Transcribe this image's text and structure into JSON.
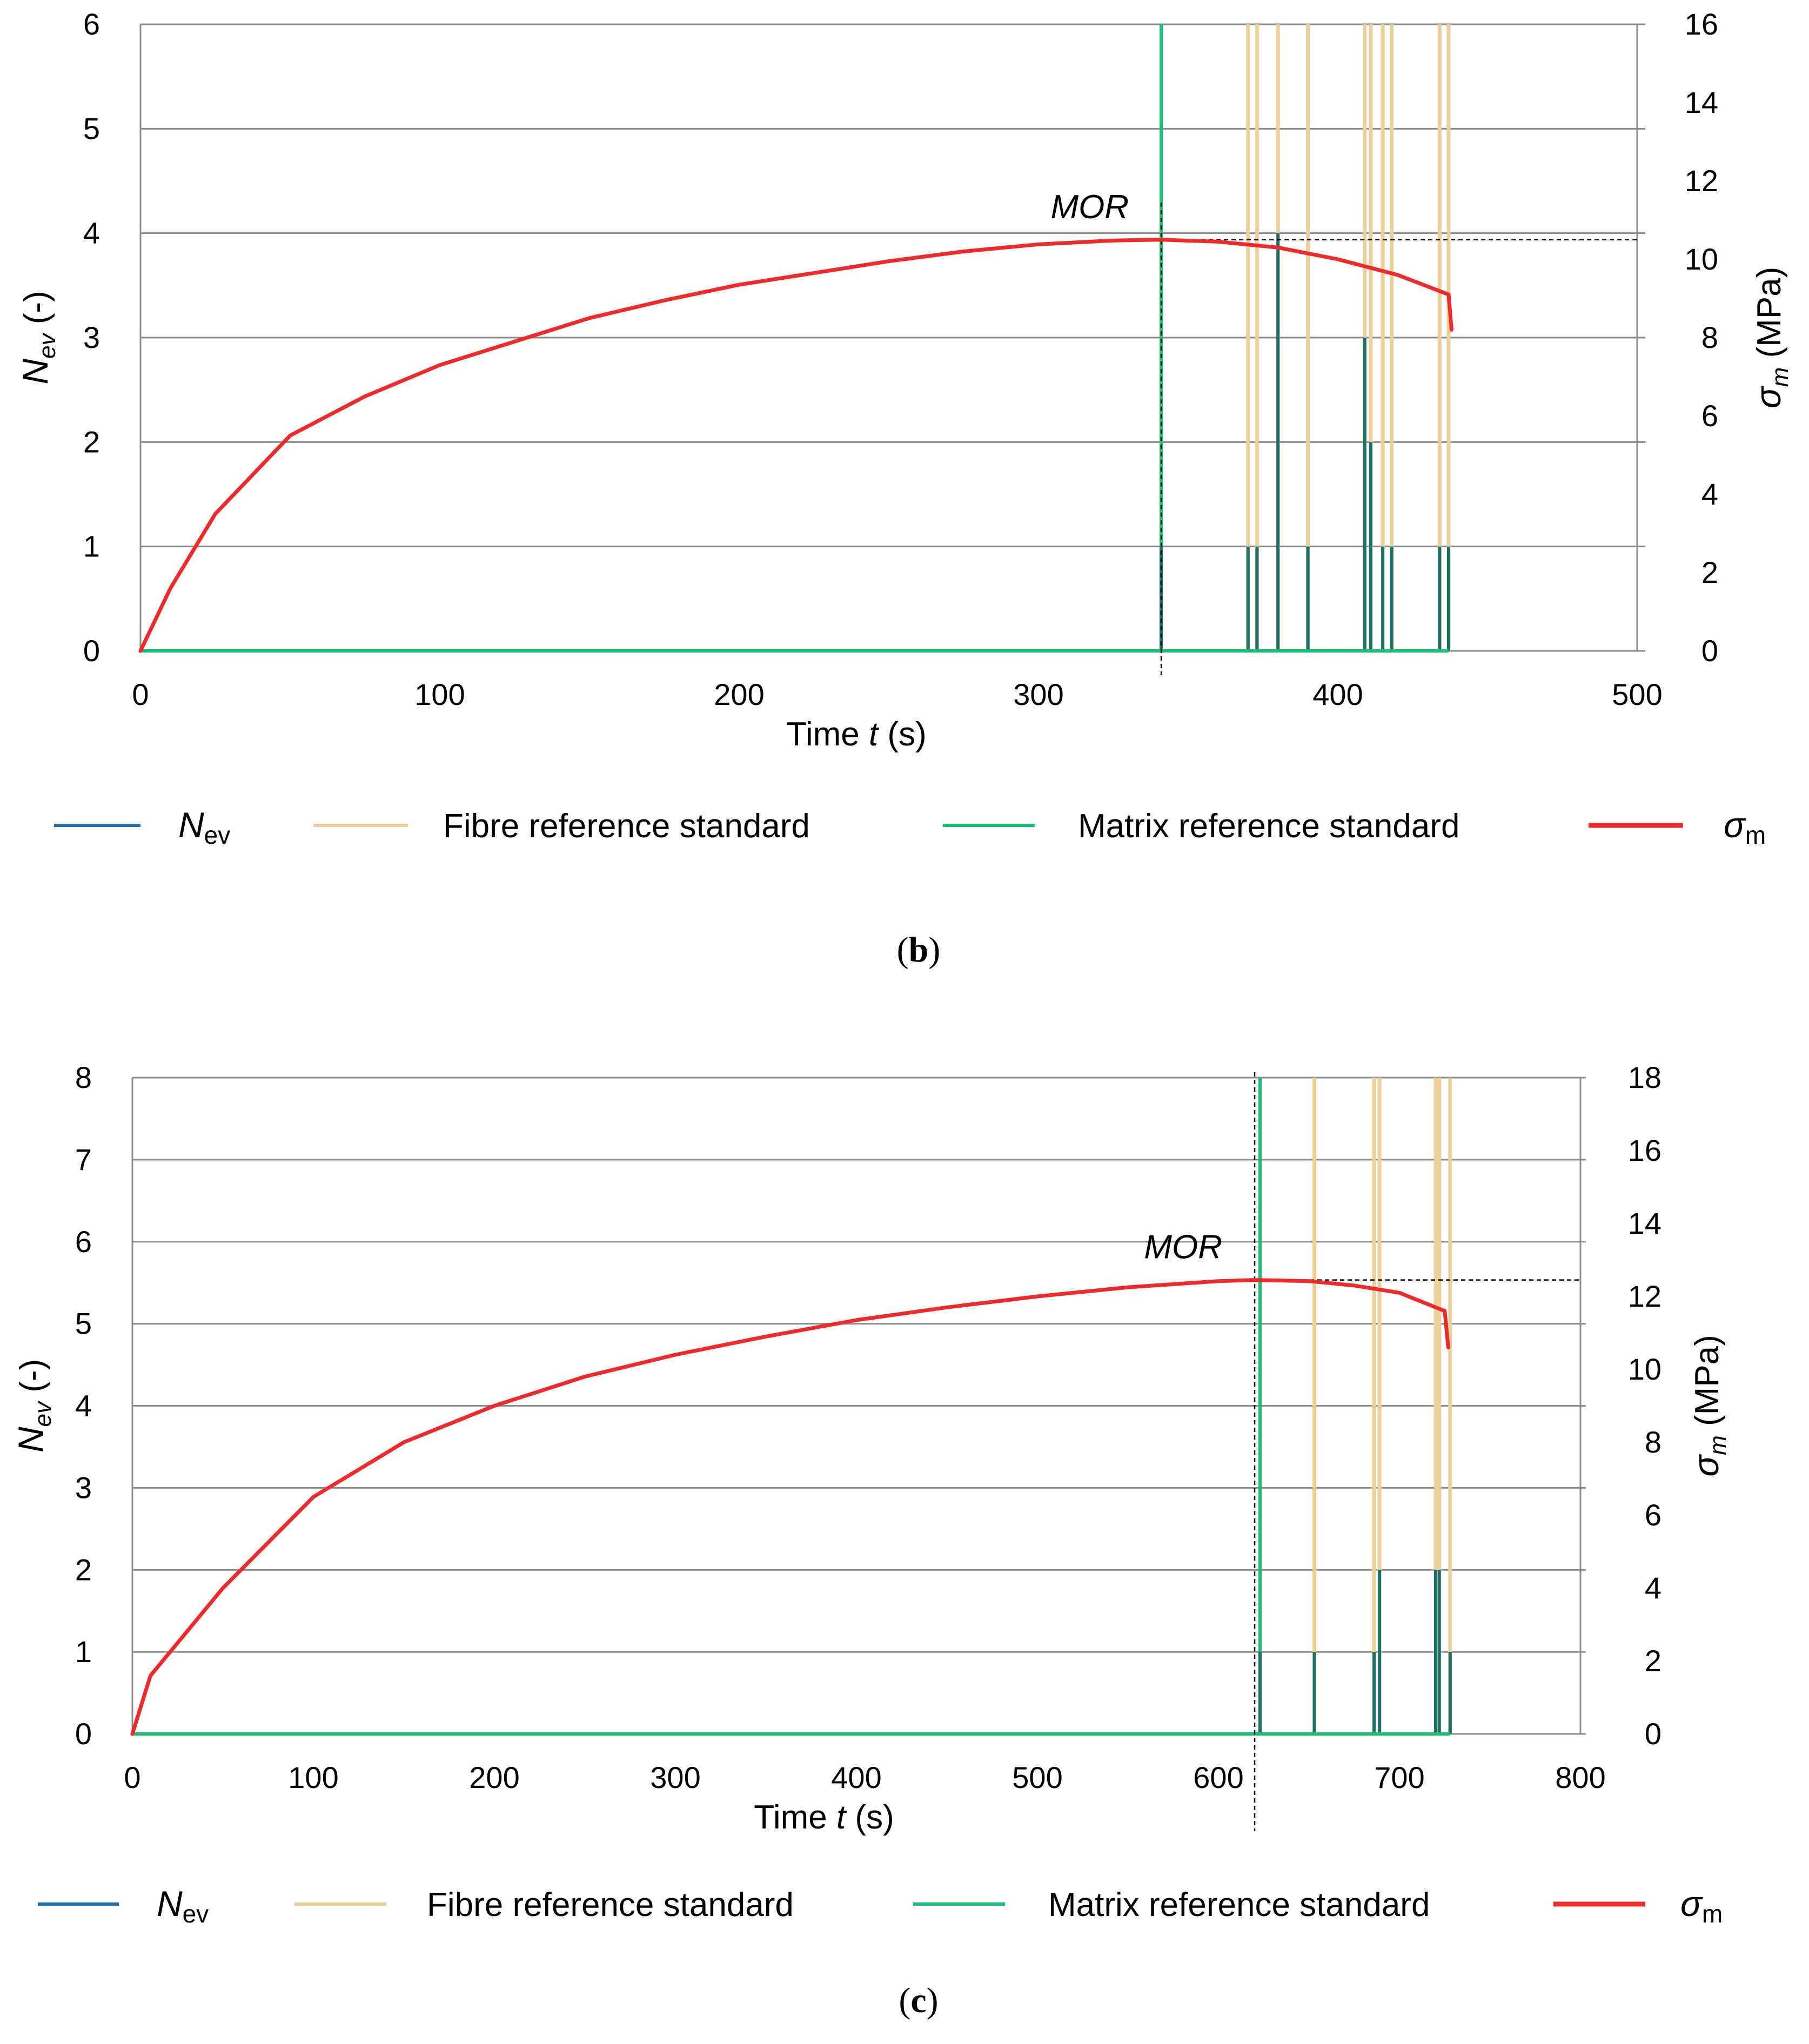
{
  "chart_data": [
    {
      "type": "line",
      "panel": "(b)",
      "panel_letter": "b",
      "xlabel": "Time t (s)",
      "xlabel_prefix": "Time ",
      "xlabel_var": "t",
      "xlabel_unit": " (s)",
      "ylabel_left": "Nev (-)",
      "ylabel_left_var": "N",
      "ylabel_left_sub": "ev",
      "ylabel_left_unit": " (-)",
      "ylabel_right": "σm (MPa)",
      "ylabel_right_var": "σ",
      "ylabel_right_sub": "m",
      "ylabel_right_unit": " (MPa)",
      "xlim": [
        0,
        500
      ],
      "ylim_left": [
        0,
        6
      ],
      "ylim_right": [
        0,
        16
      ],
      "xticks": [
        0,
        100,
        200,
        300,
        400,
        500
      ],
      "yticks_left": [
        0,
        1,
        2,
        3,
        4,
        5,
        6
      ],
      "yticks_right": [
        0,
        2,
        4,
        6,
        8,
        10,
        12,
        14,
        16
      ],
      "grid": true,
      "legend_position": "bottom",
      "colors": {
        "nev": "#1f6fb5",
        "fibre": "#ecd09a",
        "matrix": "#19bf72",
        "dark_event": "#1d6f6a",
        "sigma": "#ee2a2a"
      },
      "annotation": {
        "text": "MOR",
        "x": 341,
        "y_right": 10.5
      },
      "series": [
        {
          "name": "Nev",
          "legend_var": "N",
          "legend_sub": "ev",
          "axis": "left",
          "events": [
            {
              "x": 341,
              "y": 1
            },
            {
              "x": 370,
              "y": 1
            },
            {
              "x": 373,
              "y": 1
            },
            {
              "x": 380,
              "y": 4
            },
            {
              "x": 390,
              "y": 1
            },
            {
              "x": 409,
              "y": 3
            },
            {
              "x": 411,
              "y": 2
            },
            {
              "x": 415,
              "y": 1
            },
            {
              "x": 418,
              "y": 1
            },
            {
              "x": 434,
              "y": 1
            },
            {
              "x": 437,
              "y": 1
            }
          ]
        },
        {
          "name": "Fibre reference standard",
          "axis": "left",
          "x": [
            370,
            373,
            380,
            390,
            409,
            411,
            415,
            418,
            434,
            437
          ]
        },
        {
          "name": "Matrix reference standard",
          "axis": "left",
          "x": [
            341
          ]
        },
        {
          "name": "σm",
          "legend_var": "σ",
          "legend_sub": "m",
          "axis": "right",
          "x": [
            0,
            10,
            25,
            50,
            75,
            100,
            125,
            150,
            175,
            200,
            225,
            250,
            275,
            300,
            325,
            341,
            360,
            380,
            400,
            420,
            437,
            438
          ],
          "y": [
            0,
            1.6,
            3.5,
            5.5,
            6.5,
            7.3,
            7.9,
            8.5,
            8.95,
            9.35,
            9.65,
            9.95,
            10.2,
            10.38,
            10.48,
            10.5,
            10.45,
            10.3,
            10.0,
            9.6,
            9.1,
            8.2
          ]
        }
      ]
    },
    {
      "type": "line",
      "panel": "(c)",
      "panel_letter": "c",
      "xlabel": "Time t (s)",
      "xlabel_prefix": "Time ",
      "xlabel_var": "t",
      "xlabel_unit": " (s)",
      "ylabel_left": "Nev (-)",
      "ylabel_left_var": "N",
      "ylabel_left_sub": "ev",
      "ylabel_left_unit": " (-)",
      "ylabel_right": "σm (MPa)",
      "ylabel_right_var": "σ",
      "ylabel_right_sub": "m",
      "ylabel_right_unit": " (MPa)",
      "xlim": [
        0,
        800
      ],
      "ylim_left": [
        0,
        8
      ],
      "ylim_right": [
        0,
        18
      ],
      "xticks": [
        0,
        100,
        200,
        300,
        400,
        500,
        600,
        700,
        800
      ],
      "yticks_left": [
        0,
        1,
        2,
        3,
        4,
        5,
        6,
        7,
        8
      ],
      "yticks_right": [
        0,
        2,
        4,
        6,
        8,
        10,
        12,
        14,
        16,
        18
      ],
      "grid": true,
      "legend_position": "bottom",
      "colors": {
        "nev": "#1f6fb5",
        "fibre": "#ecd09a",
        "matrix": "#19bf72",
        "dark_event": "#1d6f6a",
        "sigma": "#ee2a2a"
      },
      "annotation": {
        "text": "MOR",
        "x": 620,
        "y_right": 12.45
      },
      "series": [
        {
          "name": "Nev",
          "legend_var": "N",
          "legend_sub": "ev",
          "axis": "left",
          "events": [
            {
              "x": 623,
              "y": 1
            },
            {
              "x": 653,
              "y": 1
            },
            {
              "x": 686,
              "y": 1
            },
            {
              "x": 689,
              "y": 2
            },
            {
              "x": 720,
              "y": 2
            },
            {
              "x": 722,
              "y": 2
            },
            {
              "x": 728,
              "y": 1
            }
          ]
        },
        {
          "name": "Fibre reference standard",
          "axis": "left",
          "x": [
            653,
            686,
            689,
            720,
            722,
            728
          ]
        },
        {
          "name": "Matrix reference standard",
          "axis": "left",
          "x": [
            623
          ]
        },
        {
          "name": "σm",
          "legend_var": "σ",
          "legend_sub": "m",
          "axis": "right",
          "x": [
            0,
            10,
            25,
            50,
            100,
            150,
            200,
            250,
            300,
            350,
            400,
            450,
            500,
            550,
            600,
            620,
            650,
            675,
            700,
            725,
            727
          ],
          "y": [
            0,
            1.6,
            2.5,
            4.0,
            6.5,
            8.0,
            9.0,
            9.8,
            10.4,
            10.9,
            11.35,
            11.7,
            12.0,
            12.25,
            12.42,
            12.45,
            12.42,
            12.3,
            12.1,
            11.6,
            10.6
          ]
        }
      ]
    }
  ]
}
